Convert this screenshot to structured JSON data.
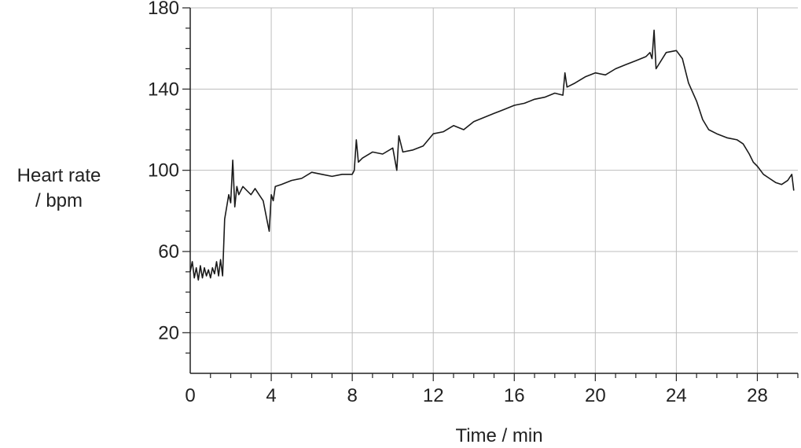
{
  "chart_data": {
    "type": "line",
    "title": "",
    "xlabel": "Time / min",
    "ylabel_line1": "Heart rate",
    "ylabel_line2": "/ bpm",
    "xlim": [
      0,
      30
    ],
    "ylim": [
      0,
      180
    ],
    "x_ticks": [
      0,
      4,
      8,
      12,
      16,
      20,
      24,
      28
    ],
    "y_ticks": [
      20,
      60,
      100,
      140,
      180
    ],
    "grid": true,
    "line_color": "#1a1a1a",
    "grid_color": "#bdbdbd",
    "series": [
      {
        "x": [
          0,
          0.1,
          0.2,
          0.3,
          0.4,
          0.5,
          0.6,
          0.7,
          0.8,
          0.9,
          1.0,
          1.1,
          1.2,
          1.3,
          1.4,
          1.5,
          1.6,
          1.7,
          1.8,
          1.9,
          2.0,
          2.1,
          2.2,
          2.3,
          2.4,
          2.6,
          2.8,
          3.0,
          3.2,
          3.4,
          3.6,
          3.8,
          3.9,
          4.0,
          4.1,
          4.2,
          4.5,
          5.0,
          5.5,
          6.0,
          6.5,
          7.0,
          7.5,
          8.0,
          8.1,
          8.2,
          8.3,
          8.5,
          9.0,
          9.5,
          10.0,
          10.2,
          10.3,
          10.5,
          11.0,
          11.5,
          12.0,
          12.5,
          13.0,
          13.5,
          14.0,
          14.5,
          15.0,
          15.5,
          16.0,
          16.5,
          17.0,
          17.5,
          18.0,
          18.4,
          18.5,
          18.6,
          19.0,
          19.5,
          20.0,
          20.5,
          21.0,
          21.5,
          22.0,
          22.5,
          22.7,
          22.8,
          22.9,
          23.0,
          23.5,
          24.0,
          24.3,
          24.6,
          25.0,
          25.3,
          25.6,
          26.0,
          26.5,
          27.0,
          27.3,
          27.6,
          27.8,
          28.0,
          28.3,
          28.6,
          28.9,
          29.2,
          29.5,
          29.7,
          29.8
        ],
        "y": [
          50,
          55,
          47,
          52,
          46,
          53,
          47,
          52,
          48,
          51,
          47,
          52,
          49,
          55,
          48,
          56,
          48,
          76,
          82,
          88,
          84,
          105,
          82,
          92,
          88,
          92,
          90,
          88,
          91,
          88,
          85,
          75,
          70,
          88,
          85,
          92,
          93,
          95,
          96,
          99,
          98,
          97,
          98,
          98,
          100,
          115,
          104,
          106,
          109,
          108,
          111,
          100,
          117,
          109,
          110,
          112,
          118,
          119,
          122,
          120,
          124,
          126,
          128,
          130,
          132,
          133,
          135,
          136,
          138,
          137,
          148,
          141,
          143,
          146,
          148,
          147,
          150,
          152,
          154,
          156,
          158,
          155,
          169,
          150,
          158,
          159,
          155,
          143,
          134,
          125,
          120,
          118,
          116,
          115,
          113,
          108,
          104,
          102,
          98,
          96,
          94,
          93,
          95,
          98,
          90
        ]
      }
    ]
  }
}
